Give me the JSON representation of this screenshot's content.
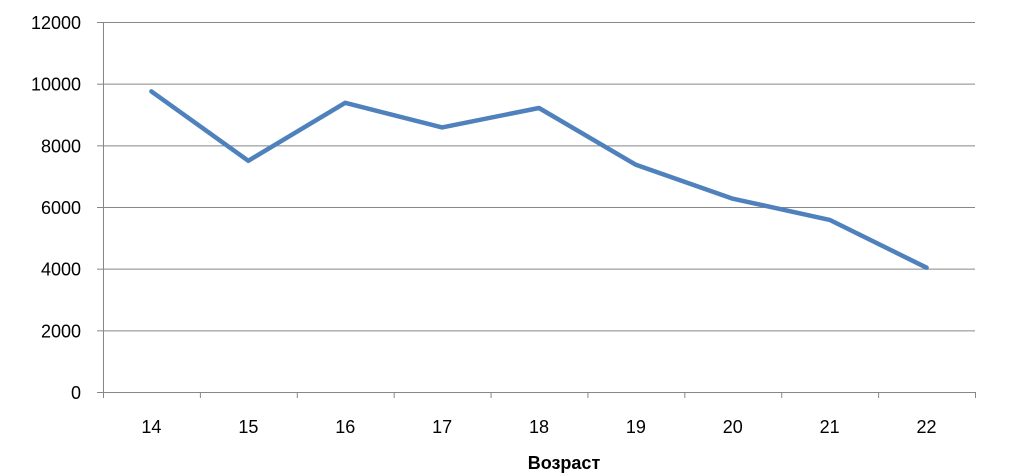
{
  "chart_data": {
    "type": "line",
    "title": "",
    "xlabel": "Возраст",
    "ylabel": "",
    "x": [
      "14",
      "15",
      "16",
      "17",
      "18",
      "19",
      "20",
      "21",
      "22"
    ],
    "series": [
      {
        "values": [
          9750,
          7500,
          9380,
          8580,
          9210,
          7370,
          6270,
          5580,
          4030
        ]
      }
    ],
    "ylim": [
      0,
      12000
    ],
    "yticks": [
      0,
      2000,
      4000,
      6000,
      8000,
      10000,
      12000
    ],
    "grid": true,
    "legend": "none",
    "colors": {
      "line": "#4f81bd",
      "grid": "#878787",
      "axis": "#878787"
    }
  }
}
